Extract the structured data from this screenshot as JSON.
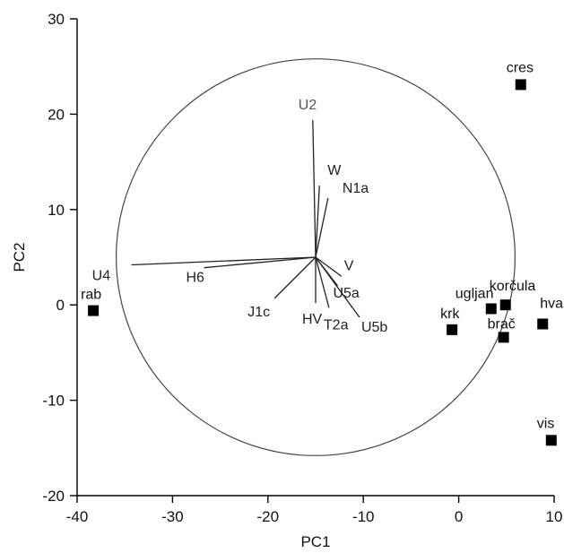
{
  "chart_data": {
    "type": "scatter",
    "title": "",
    "xlabel": "PC1",
    "ylabel": "PC2",
    "xlim": [
      -40,
      10
    ],
    "ylim": [
      -20,
      30
    ],
    "x_ticks": [
      -40,
      -30,
      -20,
      -10,
      0,
      10
    ],
    "y_ticks": [
      -20,
      -10,
      0,
      10,
      20,
      30
    ],
    "x_tick_labels": [
      "-40",
      "-30",
      "-20",
      "-10",
      "0",
      "10"
    ],
    "y_tick_labels": [
      "-20",
      "-10",
      "0",
      "10",
      "20",
      "30"
    ],
    "grid": false,
    "marker_color": "#000000",
    "points": [
      {
        "label": "rab",
        "x": -38.3,
        "y": -0.6
      },
      {
        "label": "krk",
        "x": -0.7,
        "y": -2.6
      },
      {
        "label": "ugljan",
        "x": 3.4,
        "y": -0.4
      },
      {
        "label": "korčula",
        "x": 4.9,
        "y": 0.0
      },
      {
        "label": "brač",
        "x": 4.7,
        "y": -3.4
      },
      {
        "label": "hvar",
        "x": 8.8,
        "y": -2.0
      },
      {
        "label": "cres",
        "x": 6.5,
        "y": 23.1
      },
      {
        "label": "vis",
        "x": 9.7,
        "y": -14.2
      }
    ],
    "correlation_circle": {
      "center": [
        -15,
        5
      ],
      "radius_x": 20.9,
      "radius_y": 20.8
    },
    "loadings": {
      "origin": [
        -15,
        5
      ],
      "vectors": [
        {
          "label": "U2",
          "x": -15.3,
          "y": 19.4
        },
        {
          "label": "W",
          "x": -14.6,
          "y": 12.5
        },
        {
          "label": "N1a",
          "x": -13.7,
          "y": 11.2
        },
        {
          "label": "U4",
          "x": -34.3,
          "y": 4.2
        },
        {
          "label": "H6",
          "x": -26.7,
          "y": 3.9
        },
        {
          "label": "J1c",
          "x": -19.3,
          "y": 0.7
        },
        {
          "label": "HV",
          "x": -15.0,
          "y": 0.2
        },
        {
          "label": "V",
          "x": -12.3,
          "y": 3.0
        },
        {
          "label": "U5a",
          "x": -12.7,
          "y": 2.0
        },
        {
          "label": "T2a",
          "x": -13.6,
          "y": -0.3
        },
        {
          "label": "U5b",
          "x": -10.4,
          "y": -1.3
        }
      ]
    }
  }
}
